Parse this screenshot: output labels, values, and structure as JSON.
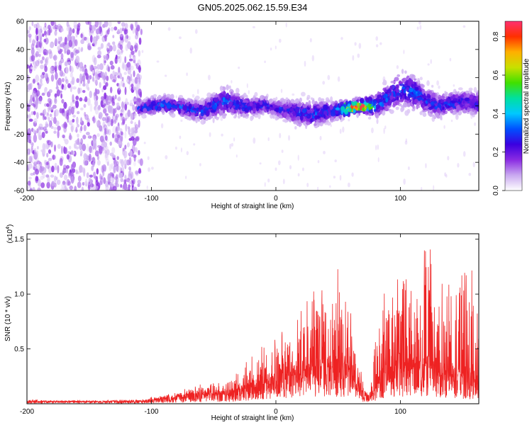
{
  "title": "GN05.2025.062.15.59.E34",
  "chart_data": [
    {
      "type": "heatmap",
      "title": "GN05.2025.062.15.59.E34",
      "xlabel": "Height of straight line (km)",
      "ylabel": "Frequency (Hz)",
      "xlim": [
        -200,
        163
      ],
      "ylim": [
        -60,
        60
      ],
      "xticks": [
        -200,
        -100,
        0,
        100
      ],
      "yticks": [
        60,
        40,
        20,
        0,
        -20,
        -40,
        -60
      ],
      "colorbar": {
        "label": "Normalized spectral amplitude",
        "range": [
          0.0,
          0.88
        ],
        "ticks": [
          0.0,
          0.2,
          0.4,
          0.6,
          0.8
        ],
        "colors": [
          "#ffffff",
          "#c9a8f0",
          "#8a2be2",
          "#3b00e0",
          "#0050ff",
          "#00c8ff",
          "#00e0a0",
          "#40e000",
          "#c8e000",
          "#ffb000",
          "#ff3000",
          "#ff3070"
        ]
      },
      "noise_band": {
        "x_range": [
          -200,
          -108
        ],
        "freq_range": [
          -60,
          60
        ],
        "amplitude": 0.12
      },
      "signal_track": {
        "x": [
          -110,
          -100,
          -90,
          -80,
          -70,
          -60,
          -50,
          -40,
          -30,
          -20,
          -10,
          0,
          10,
          20,
          30,
          40,
          50,
          60,
          70,
          80,
          90,
          100,
          110,
          120,
          130,
          140,
          150,
          160
        ],
        "center_freq": [
          -2,
          0,
          1,
          0,
          -2,
          -4,
          0,
          3,
          1,
          -1,
          1,
          -2,
          -3,
          -5,
          -6,
          -4,
          -3,
          -1,
          0,
          0,
          6,
          12,
          10,
          4,
          0,
          2,
          3,
          2
        ],
        "spread": [
          6,
          9,
          9,
          10,
          10,
          11,
          13,
          16,
          12,
          10,
          9,
          8,
          12,
          14,
          14,
          12,
          10,
          8,
          8,
          12,
          16,
          20,
          18,
          14,
          13,
          12,
          12,
          12
        ],
        "amplitude": [
          0.28,
          0.32,
          0.3,
          0.3,
          0.3,
          0.28,
          0.3,
          0.34,
          0.3,
          0.28,
          0.3,
          0.25,
          0.28,
          0.3,
          0.3,
          0.3,
          0.35,
          0.88,
          0.88,
          0.4,
          0.3,
          0.28,
          0.35,
          0.3,
          0.28,
          0.28,
          0.28,
          0.28
        ]
      }
    },
    {
      "type": "line",
      "xlabel": "Height of straight line (km)",
      "ylabel": "SNR (10 * v/v)",
      "y_multiplier": "(x10",
      "y_multiplier_exp": "4",
      "y_multiplier_close": ")",
      "xlim": [
        -200,
        163
      ],
      "ylim": [
        0,
        1.55
      ],
      "xticks": [
        -200,
        -100,
        0,
        100
      ],
      "yticks": [
        0.5,
        1.0,
        1.5
      ],
      "color": "#ee2222",
      "series": [
        {
          "x": [
            -200,
            -180,
            -160,
            -140,
            -120,
            -110,
            -100,
            -90,
            -80,
            -70,
            -60,
            -50,
            -40,
            -30,
            -20,
            -10,
            0,
            10,
            20,
            30,
            40,
            50,
            55,
            60,
            65,
            70,
            75,
            80,
            85,
            90,
            100,
            110,
            120,
            130,
            140,
            150,
            160,
            163
          ],
          "baseline": [
            0.02,
            0.02,
            0.02,
            0.02,
            0.02,
            0.02,
            0.03,
            0.04,
            0.05,
            0.07,
            0.08,
            0.08,
            0.08,
            0.1,
            0.15,
            0.18,
            0.22,
            0.25,
            0.28,
            0.3,
            0.3,
            0.32,
            0.3,
            0.25,
            0.15,
            0.08,
            0.05,
            0.12,
            0.25,
            0.28,
            0.3,
            0.3,
            0.32,
            0.28,
            0.25,
            0.22,
            0.2,
            0.2
          ],
          "peak": [
            0.04,
            0.03,
            0.03,
            0.03,
            0.04,
            0.04,
            0.06,
            0.08,
            0.1,
            0.15,
            0.18,
            0.2,
            0.2,
            0.3,
            0.45,
            0.55,
            0.62,
            0.72,
            0.85,
            1.05,
            1.25,
            1.3,
            1.05,
            0.85,
            0.5,
            0.2,
            0.1,
            0.6,
            0.95,
            1.1,
            1.15,
            1.25,
            1.55,
            1.2,
            1.1,
            1.25,
            1.25,
            1.0
          ]
        }
      ]
    }
  ]
}
